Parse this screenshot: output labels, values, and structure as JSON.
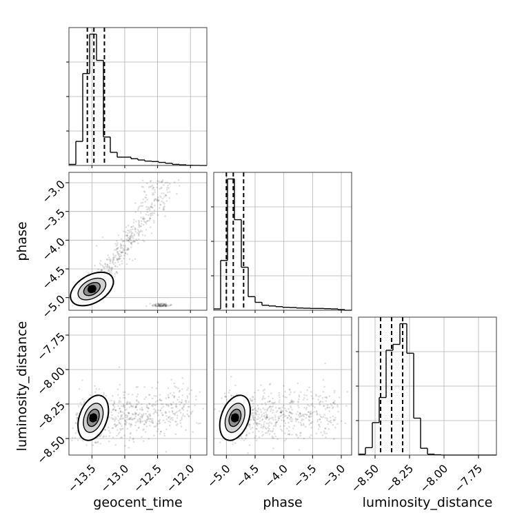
{
  "chart_data": {
    "type": "corner",
    "parameters": [
      "geocent_time",
      "phase",
      "luminosity_distance"
    ],
    "grid": true,
    "ranges": {
      "geocent_time": [
        -13.85,
        -11.75
      ],
      "phase": [
        -5.22,
        -2.82
      ],
      "luminosity_distance": [
        -8.62,
        -7.62
      ]
    },
    "ticks": {
      "geocent_time": [
        -13.5,
        -13.0,
        -12.5,
        -12.0
      ],
      "phase": [
        -5.0,
        -4.5,
        -4.0,
        -3.5,
        -3.0
      ],
      "luminosity_distance": [
        -8.5,
        -8.25,
        -8.0,
        -7.75
      ]
    },
    "tick_labels": {
      "geocent_time": [
        "−13.5",
        "−13.0",
        "−12.5",
        "−12.0"
      ],
      "phase": [
        "−5.0",
        "−4.5",
        "−4.0",
        "−3.5",
        "−3.0"
      ],
      "luminosity_distance": [
        "−8.50",
        "−8.25",
        "−8.00",
        "−7.75"
      ]
    },
    "phase_y_tick_labels": [
      "−3.0",
      "−3.5",
      "−4.0",
      "−4.5",
      "−5.0"
    ],
    "lumdist_y_tick_labels": [
      "−7.75",
      "−8.00",
      "−8.25",
      "−8.50"
    ],
    "axis_labels": {
      "x": [
        "geocent_time",
        "phase",
        "luminosity_distance"
      ],
      "y": [
        "phase",
        "luminosity_distance"
      ]
    },
    "histograms": {
      "geocent_time": {
        "bin_edges": [
          -13.85,
          -13.745,
          -13.64,
          -13.535,
          -13.43,
          -13.325,
          -13.22,
          -13.115,
          -13.01,
          -12.905,
          -12.8,
          -12.695,
          -12.59,
          -12.485,
          -12.38,
          -12.275,
          -12.17,
          -12.065,
          -11.96,
          -11.855,
          -11.75
        ],
        "counts": [
          0.5,
          11,
          42,
          60,
          48,
          13,
          6,
          3.8,
          3.8,
          3.1,
          2.5,
          2.0,
          1.8,
          1.4,
          1.0,
          0.5,
          0.3,
          0.1,
          0.05,
          0
        ],
        "quantiles": [
          -13.57,
          -13.47,
          -13.31
        ]
      },
      "phase": {
        "bin_edges": [
          -5.22,
          -5.1,
          -4.98,
          -4.86,
          -4.74,
          -4.62,
          -4.5,
          -4.38,
          -4.26,
          -4.14,
          -4.02,
          -3.9,
          -3.78,
          -3.66,
          -3.54,
          -3.42,
          -3.3,
          -3.18,
          -3.06,
          -2.94,
          -2.82
        ],
        "counts": [
          0.6,
          22,
          58,
          40,
          19,
          6,
          3.5,
          2.2,
          1.9,
          1.6,
          1.3,
          1.2,
          1.0,
          0.9,
          0.8,
          0.8,
          0.7,
          0.6,
          0.3,
          0
        ],
        "quantiles": [
          -5.0,
          -4.88,
          -4.7
        ]
      },
      "luminosity_distance": {
        "bin_edges": [
          -8.62,
          -8.57,
          -8.52,
          -8.47,
          -8.42,
          -8.37,
          -8.32,
          -8.27,
          -8.22,
          -8.17,
          -8.12,
          -8.07,
          -8.02,
          -7.97,
          -7.92,
          -7.87,
          -7.82,
          -7.77,
          -7.72,
          -7.67,
          -7.62
        ],
        "counts": [
          0.3,
          2.5,
          11,
          19.5,
          35.5,
          37.5,
          44.5,
          34.5,
          12.5,
          2.3,
          0.3,
          0.1,
          0,
          0,
          0,
          0,
          0,
          0,
          0,
          0
        ],
        "quantiles": [
          -8.46,
          -8.38,
          -8.3
        ]
      }
    },
    "correlations": {
      "geocent_time_phase": {
        "x_of_y_curve": {
          "y": [
            -5.1,
            -4.6,
            -4.2,
            -3.8,
            -3.5,
            -3.0
          ],
          "x": [
            -13.6,
            -13.32,
            -13.05,
            -12.82,
            -12.6,
            -12.45
          ]
        },
        "x_peak": -13.5,
        "y_peak": -4.85,
        "scatter_x_range": [
          -13.85,
          -11.9
        ],
        "scatter_y_range": [
          -5.15,
          -2.95
        ]
      },
      "geocent_time_luminosity_distance": {
        "x_peak": -13.48,
        "y_peak": -8.35,
        "scatter_x_range": [
          -13.85,
          -11.9
        ],
        "scatter_y_range": [
          -8.6,
          -7.9
        ]
      },
      "phase_luminosity_distance": {
        "x_peak": -4.85,
        "y_peak": -8.35,
        "scatter_x_range": [
          -5.22,
          -3.0
        ],
        "scatter_y_range": [
          -8.6,
          -7.9
        ]
      }
    }
  }
}
